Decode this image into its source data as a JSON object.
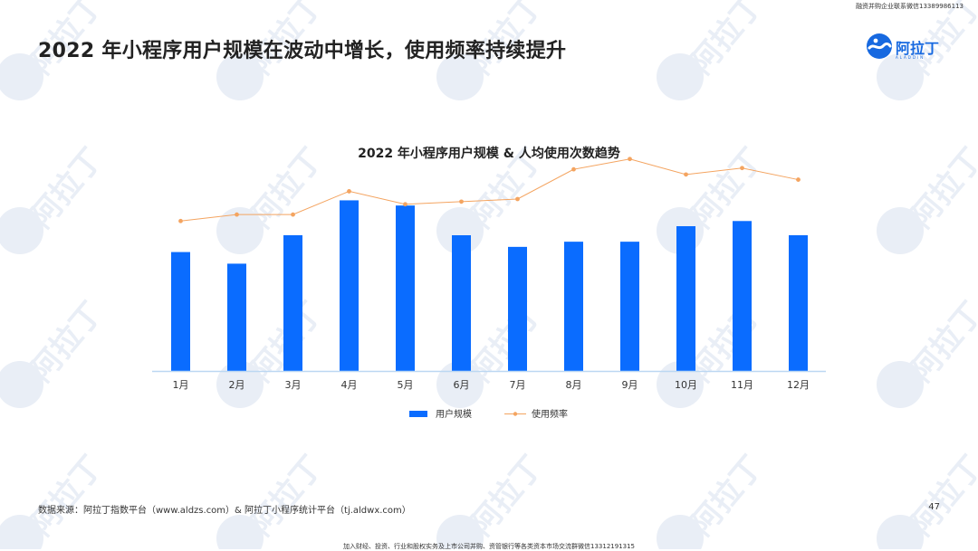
{
  "header": {
    "top_note": "融资并购企业联系微信13389986113",
    "title": "2022 年小程序用户规模在波动中增长，使用频率持续提升"
  },
  "logo": {
    "text": "阿拉丁",
    "subtext": "ALADDIN",
    "color": "#1769e0"
  },
  "watermark": {
    "text": "阿拉丁",
    "color": "#e9eef6"
  },
  "chart_data": {
    "type": "bar",
    "title": "2022 年小程序用户规模 & 人均使用次数趋势",
    "categories": [
      "1月",
      "2月",
      "3月",
      "4月",
      "5月",
      "6月",
      "7月",
      "8月",
      "9月",
      "10月",
      "11月",
      "12月"
    ],
    "series": [
      {
        "name": "用户规模",
        "type": "bar",
        "color": "#0a6cff",
        "values": [
          92,
          83,
          105,
          132,
          128,
          105,
          96,
          100,
          100,
          112,
          116,
          105
        ]
      },
      {
        "name": "使用频率",
        "type": "line",
        "color": "#f4a460",
        "values": [
          116,
          121,
          121,
          139,
          129,
          131,
          133,
          156,
          164,
          152,
          157,
          148
        ]
      }
    ],
    "ylim": [
      0,
      175
    ],
    "grid": false,
    "legend_position": "bottom"
  },
  "footer": {
    "source": "数据来源：阿拉丁指数平台（www.aldzs.com）& 阿拉丁小程序统计平台（tj.aldwx.com）",
    "page_number": "47",
    "bottom_note": "加入财经、投资、行业和股权实务及上市公司并购、资管银行等各类资本市场交流群微信13312191315"
  }
}
